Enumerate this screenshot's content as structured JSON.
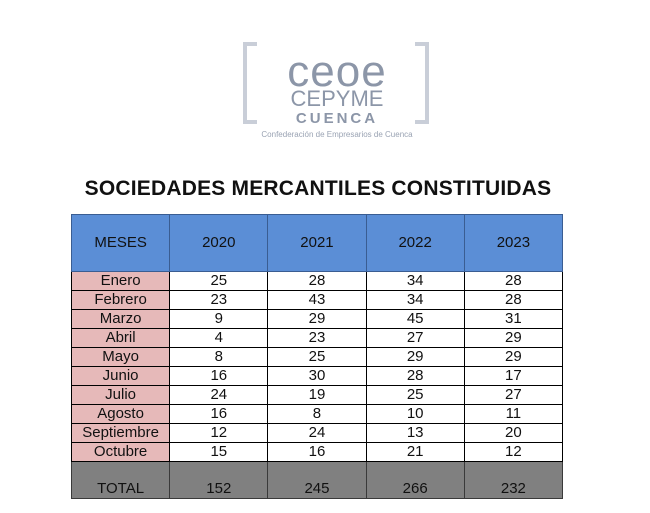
{
  "logo": {
    "line1": "ceoe",
    "line2": "CEPYME",
    "line3": "CUENCA",
    "subtitle": "Confederación de Empresarios de Cuenca"
  },
  "title": "SOCIEDADES MERCANTILES CONSTITUIDAS",
  "table": {
    "headers": [
      "MESES",
      "2020",
      "2021",
      "2022",
      "2023"
    ],
    "rows": [
      [
        "Enero",
        "25",
        "28",
        "34",
        "28"
      ],
      [
        "Febrero",
        "23",
        "43",
        "34",
        "28"
      ],
      [
        "Marzo",
        "9",
        "29",
        "45",
        "31"
      ],
      [
        "Abril",
        "4",
        "23",
        "27",
        "29"
      ],
      [
        "Mayo",
        "8",
        "25",
        "29",
        "29"
      ],
      [
        "Junio",
        "16",
        "30",
        "28",
        "17"
      ],
      [
        "Julio",
        "24",
        "19",
        "25",
        "27"
      ],
      [
        "Agosto",
        "16",
        "8",
        "10",
        "11"
      ],
      [
        "Septiembre",
        "12",
        "24",
        "13",
        "20"
      ],
      [
        "Octubre",
        "15",
        "16",
        "21",
        "12"
      ]
    ],
    "total": [
      "TOTAL",
      "152",
      "245",
      "266",
      "232"
    ]
  },
  "colors": {
    "header_bg": "#5b8ed6",
    "month_bg": "#e6b9b9",
    "total_bg": "#808080",
    "logo_gray": "#8c96a8"
  }
}
